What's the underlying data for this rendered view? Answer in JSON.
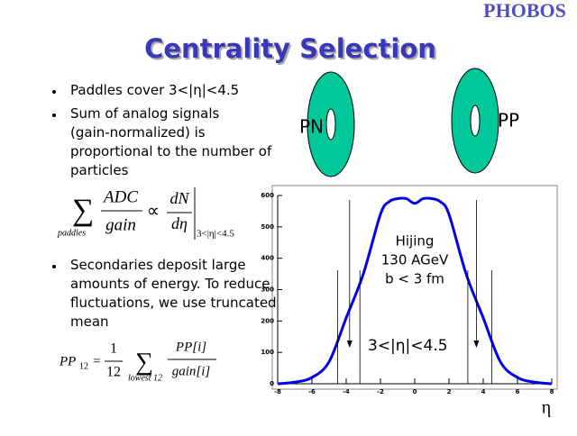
{
  "logo": "PHOBOS",
  "title": "Centrality Selection",
  "bullets": [
    "Paddles cover 3<|η|<4.5",
    "Sum of analog signals (gain-normalized) is proportional to the number of particles",
    "Secondaries deposit large amounts of energy.  To reduce fluctuations, we use truncated mean"
  ],
  "formula1": {
    "sum_under": "paddles",
    "num": "ADC",
    "den": "gain",
    "prop": "∝",
    "num2": "dN",
    "den2": "dη",
    "cond": "3<|η|<4.5"
  },
  "formula2": {
    "lhs": "PP",
    "lhs_sub": "12",
    "eq": "=",
    "num": "1",
    "den": "12",
    "sum_under": "lowest 12",
    "num2": "PP[i]",
    "den2": "gain[i]"
  },
  "detector_labels": [
    "PN",
    "PP"
  ],
  "chart_data": {
    "type": "line",
    "x": [
      -8,
      -7,
      -6,
      -5,
      -4,
      -3,
      -2,
      -1.5,
      -1,
      -0.5,
      0,
      0.5,
      1,
      1.5,
      2,
      3,
      4,
      5,
      6,
      7,
      8
    ],
    "values": [
      0,
      5,
      20,
      70,
      210,
      350,
      540,
      580,
      590,
      590,
      575,
      590,
      590,
      580,
      540,
      350,
      210,
      70,
      20,
      5,
      0
    ],
    "color": "#0000ee",
    "xlim": [
      -8,
      8
    ],
    "xticks": [
      -8,
      -6,
      -4,
      -2,
      0,
      2,
      4,
      6,
      8
    ],
    "ylim": [
      0,
      600
    ],
    "yticks": [
      0,
      100,
      200,
      300,
      400,
      500,
      600
    ],
    "xlabel": "η",
    "cuts": [
      -4.5,
      -3.2,
      3.1,
      4.5
    ],
    "arrows": [
      -3.8,
      3.6
    ],
    "annotation": [
      "Hijing",
      "130 AGeV",
      "b < 3 fm"
    ],
    "range_label": "3<|η|<4.5"
  }
}
